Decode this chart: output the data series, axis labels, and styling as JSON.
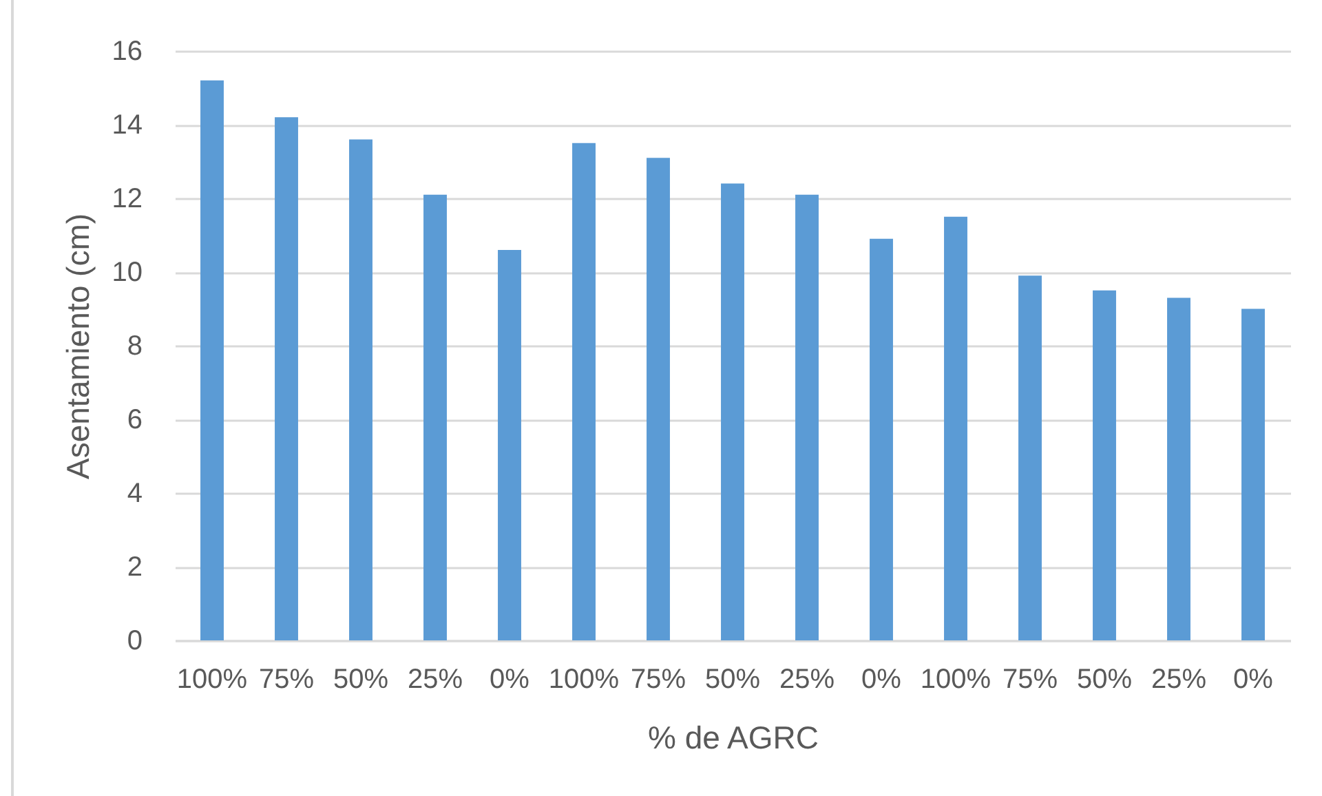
{
  "chart_data": {
    "type": "bar",
    "xlabel": "% de AGRC",
    "ylabel": "Asentamiento (cm)",
    "categories": [
      "100%",
      "75%",
      "50%",
      "25%",
      "0%",
      "100%",
      "75%",
      "50%",
      "25%",
      "0%",
      "100%",
      "75%",
      "50%",
      "25%",
      "0%"
    ],
    "values": [
      15.2,
      14.2,
      13.6,
      12.1,
      10.6,
      13.5,
      13.1,
      12.4,
      12.1,
      10.9,
      11.5,
      9.9,
      9.5,
      9.3,
      9.0
    ],
    "color": "#5b9bd5",
    "ylim": [
      0,
      16
    ],
    "yticks": [
      0,
      2,
      4,
      6,
      8,
      10,
      12,
      14,
      16
    ],
    "grid": "y"
  }
}
